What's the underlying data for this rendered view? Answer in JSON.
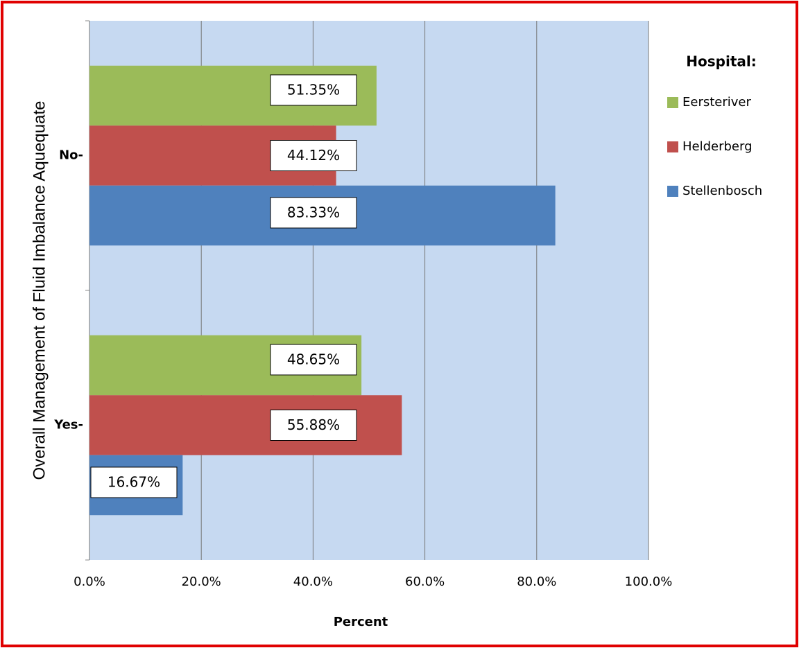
{
  "chart_data": {
    "type": "bar",
    "orientation": "horizontal",
    "x_label": "Percent",
    "y_label": "Overall Management of Fluid Imbalance Aquequate",
    "legend_title": "Hospital:",
    "legend_position": "right",
    "categories": [
      "No-",
      "Yes-"
    ],
    "series": [
      {
        "name": "Eersteriver",
        "color": "#9bbb59",
        "values": [
          51.35,
          48.65
        ],
        "value_labels": [
          "51.35%",
          "48.65%"
        ]
      },
      {
        "name": "Helderberg",
        "color": "#c0504d",
        "values": [
          44.12,
          55.88
        ],
        "value_labels": [
          "44.12%",
          "55.88%"
        ]
      },
      {
        "name": "Stellenbosch",
        "color": "#4f81bd",
        "values": [
          83.33,
          16.67
        ],
        "value_labels": [
          "83.33%",
          "16.67%"
        ]
      }
    ],
    "xlim": [
      0,
      100
    ],
    "xticks": [
      {
        "value": 0,
        "label": "0.0%"
      },
      {
        "value": 20,
        "label": "20.0%"
      },
      {
        "value": 40,
        "label": "40.0%"
      },
      {
        "value": 60,
        "label": "60.0%"
      },
      {
        "value": 80,
        "label": "80.0%"
      },
      {
        "value": 100,
        "label": "100.0%"
      }
    ],
    "grid": true
  }
}
